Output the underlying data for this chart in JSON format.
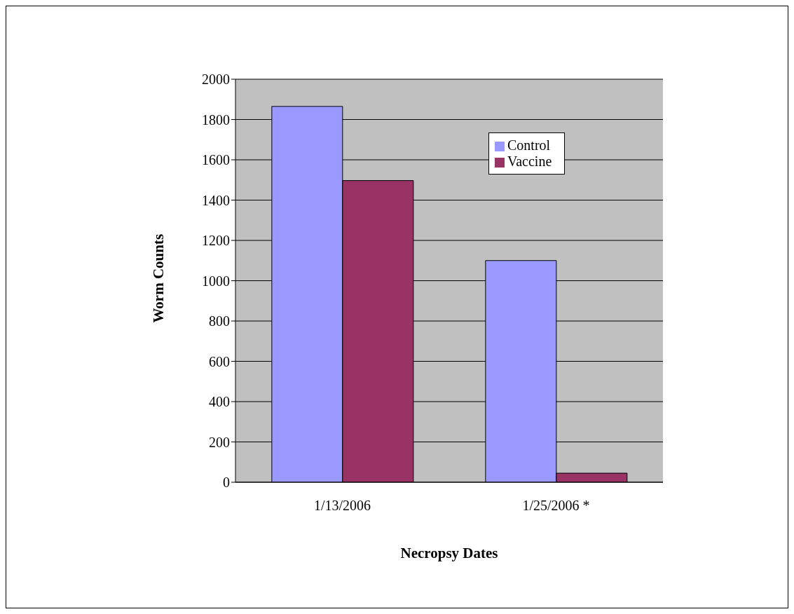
{
  "chart_data": {
    "type": "bar",
    "xlabel": "Necropsy Dates",
    "ylabel": "Worm Counts",
    "categories": [
      "1/13/2006",
      "1/25/2006 *"
    ],
    "series": [
      {
        "name": "Control",
        "color": "#9999ff",
        "values": [
          1865,
          1100
        ]
      },
      {
        "name": "Vaccine",
        "color": "#993366",
        "values": [
          1497,
          45
        ]
      }
    ],
    "ylim": [
      0,
      2000
    ],
    "yticks": [
      0,
      200,
      400,
      600,
      800,
      1000,
      1200,
      1400,
      1600,
      1800,
      2000
    ],
    "grid": "y",
    "legend": "top right"
  }
}
